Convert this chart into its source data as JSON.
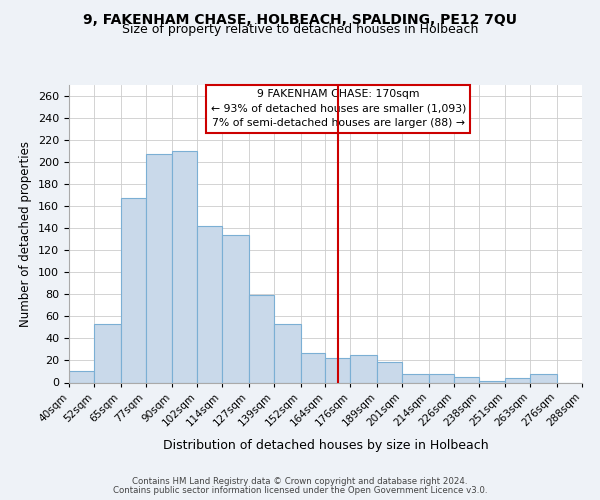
{
  "title": "9, FAKENHAM CHASE, HOLBEACH, SPALDING, PE12 7QU",
  "subtitle": "Size of property relative to detached houses in Holbeach",
  "xlabel": "Distribution of detached houses by size in Holbeach",
  "ylabel": "Number of detached properties",
  "bar_labels": [
    "40sqm",
    "52sqm",
    "65sqm",
    "77sqm",
    "90sqm",
    "102sqm",
    "114sqm",
    "127sqm",
    "139sqm",
    "152sqm",
    "164sqm",
    "176sqm",
    "189sqm",
    "201sqm",
    "214sqm",
    "226sqm",
    "238sqm",
    "251sqm",
    "263sqm",
    "276sqm",
    "288sqm"
  ],
  "bar_values": [
    10,
    53,
    167,
    207,
    210,
    142,
    134,
    79,
    53,
    27,
    22,
    25,
    19,
    8,
    8,
    5,
    1,
    4,
    8,
    0
  ],
  "bar_edges": [
    40,
    52,
    65,
    77,
    90,
    102,
    114,
    127,
    139,
    152,
    164,
    176,
    189,
    201,
    214,
    226,
    238,
    251,
    263,
    276,
    288
  ],
  "bar_color": "#c9d9ea",
  "bar_edge_color": "#7bafd4",
  "vline_x": 170,
  "vline_color": "#cc0000",
  "annotation_title": "9 FAKENHAM CHASE: 170sqm",
  "annotation_line1": "← 93% of detached houses are smaller (1,093)",
  "annotation_line2": "7% of semi-detached houses are larger (88) →",
  "ylim": [
    0,
    270
  ],
  "yticks": [
    0,
    20,
    40,
    60,
    80,
    100,
    120,
    140,
    160,
    180,
    200,
    220,
    240,
    260
  ],
  "footer1": "Contains HM Land Registry data © Crown copyright and database right 2024.",
  "footer2": "Contains public sector information licensed under the Open Government Licence v3.0.",
  "background_color": "#eef2f7",
  "plot_background": "#ffffff",
  "grid_color": "#cccccc"
}
